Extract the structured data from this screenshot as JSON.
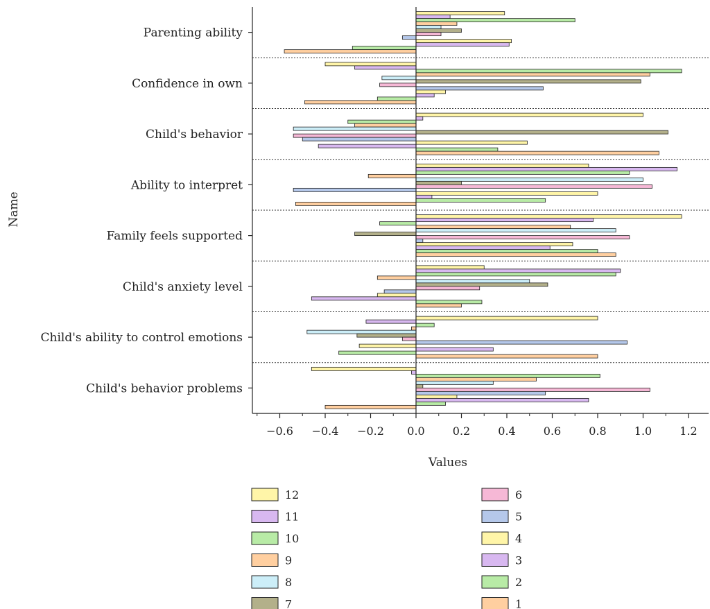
{
  "chart_data": {
    "type": "bar",
    "orientation": "horizontal",
    "xlabel": "Values",
    "ylabel": "Name",
    "xlim": [
      -0.72,
      1.29
    ],
    "xticks": [
      -0.6,
      -0.4,
      -0.2,
      0.0,
      0.2,
      0.4,
      0.6,
      0.8,
      1.0,
      1.2
    ],
    "xtick_labels": [
      "−0.6",
      "−0.4",
      "−0.2",
      "0.0",
      "0.2",
      "0.4",
      "0.6",
      "0.8",
      "1.0",
      "1.2"
    ],
    "grid": false,
    "legend_position": "bottom",
    "categories": [
      "Parenting ability",
      "Confidence in own",
      "Child's behavior",
      "Ability to interpret",
      "Family feels supported",
      "Child's anxiety level",
      "Child's ability to control emotions",
      "Child's behavior problems"
    ],
    "series": [
      {
        "name": "12",
        "color": "#FFF5A8",
        "values": [
          0.39,
          -0.4,
          1.0,
          0.76,
          1.17,
          0.3,
          0.8,
          -0.46
        ]
      },
      {
        "name": "11",
        "color": "#D8B8F0",
        "values": [
          0.15,
          -0.27,
          0.03,
          1.15,
          0.78,
          0.9,
          -0.22,
          -0.02
        ]
      },
      {
        "name": "10",
        "color": "#B8EBA6",
        "values": [
          0.7,
          1.17,
          -0.3,
          0.94,
          -0.16,
          0.88,
          0.08,
          0.81
        ]
      },
      {
        "name": "9",
        "color": "#FFCFA0",
        "values": [
          0.18,
          1.03,
          -0.27,
          -0.21,
          0.68,
          -0.17,
          -0.02,
          0.53
        ]
      },
      {
        "name": "8",
        "color": "#CCEEF8",
        "values": [
          0.11,
          -0.15,
          -0.54,
          1.0,
          0.88,
          0.5,
          -0.48,
          0.34
        ]
      },
      {
        "name": "7",
        "color": "#B3B08A",
        "values": [
          0.2,
          0.99,
          1.11,
          0.2,
          -0.27,
          0.58,
          -0.26,
          0.03
        ]
      },
      {
        "name": "6",
        "color": "#F6B8D6",
        "values": [
          0.11,
          -0.16,
          -0.54,
          1.04,
          0.94,
          0.28,
          -0.06,
          1.03
        ]
      },
      {
        "name": "5",
        "color": "#B5C8EA",
        "values": [
          -0.06,
          0.56,
          -0.5,
          -0.54,
          0.03,
          -0.14,
          0.93,
          0.57
        ]
      },
      {
        "name": "4",
        "color": "#FFF5A8",
        "values": [
          0.42,
          0.13,
          0.49,
          0.8,
          0.69,
          -0.17,
          -0.25,
          0.18
        ]
      },
      {
        "name": "3",
        "color": "#D8B8F0",
        "values": [
          0.41,
          0.08,
          -0.43,
          0.07,
          0.59,
          -0.46,
          0.34,
          0.76
        ]
      },
      {
        "name": "2",
        "color": "#B8EBA6",
        "values": [
          -0.28,
          -0.17,
          0.36,
          0.57,
          0.8,
          0.29,
          -0.34,
          0.13
        ]
      },
      {
        "name": "1",
        "color": "#FFCFA0",
        "values": [
          -0.58,
          -0.49,
          1.07,
          -0.53,
          0.88,
          0.2,
          0.8,
          -0.4
        ]
      }
    ],
    "legend_left_column": [
      "12",
      "11",
      "10",
      "9",
      "8",
      "7"
    ],
    "legend_right_column": [
      "6",
      "5",
      "4",
      "3",
      "2",
      "1"
    ]
  }
}
